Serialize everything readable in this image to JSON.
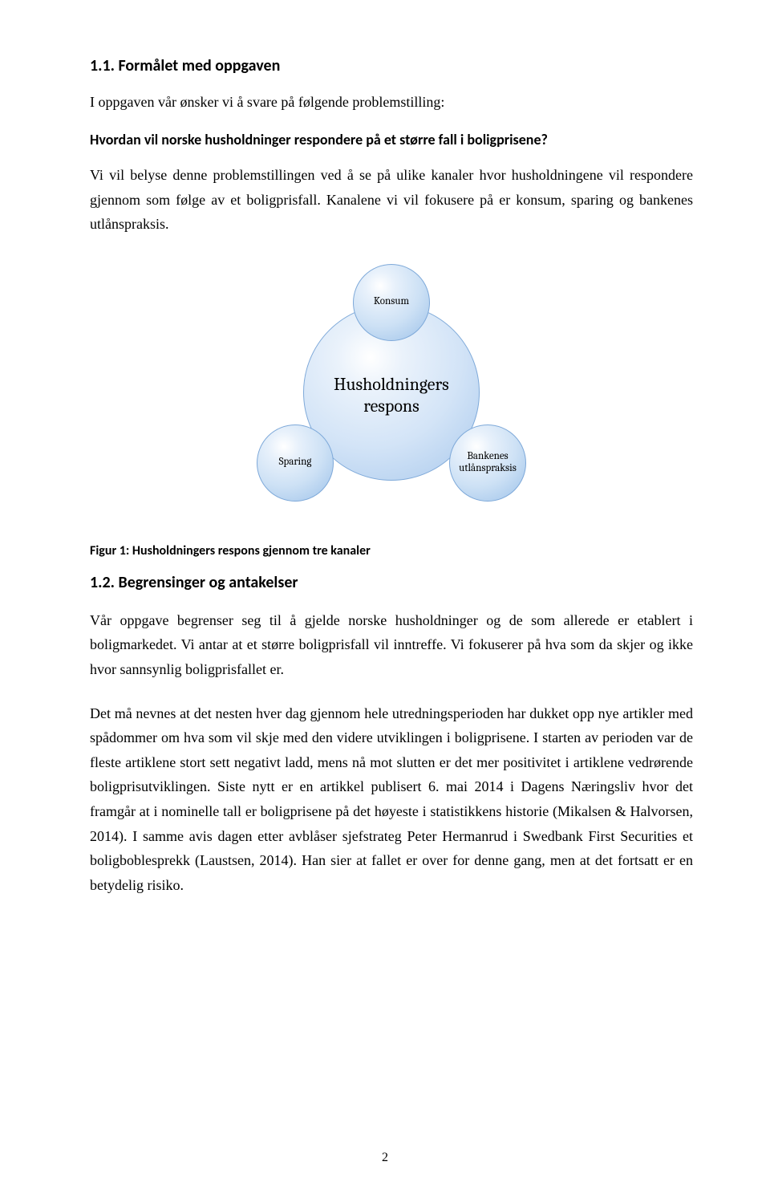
{
  "section1": {
    "heading": "1.1.  Formålet med oppgaven",
    "intro": "I oppgaven vår ønsker vi å svare på følgende problemstilling:",
    "question": "Hvordan vil norske husholdninger respondere på et større fall i boligprisene?",
    "para": "Vi vil belyse denne problemstillingen ved å se på ulike kanaler hvor husholdningene vil respondere gjennom som følge av et boligprisfall. Kanalene vi vil fokusere på er konsum, sparing og bankenes utlånspraksis."
  },
  "diagram": {
    "center": "Husholdningers respons",
    "top": "Konsum",
    "left": "Sparing",
    "right": "Bankenes utlånspraksis",
    "colors": {
      "circle_light": "#eaf2fb",
      "circle_mid": "#cde1f5",
      "circle_dark": "#9cc1e9",
      "border": "#7ea9d9"
    }
  },
  "caption": "Figur 1: Husholdningers respons gjennom tre kanaler",
  "section2": {
    "heading": "1.2.  Begrensinger og antakelser",
    "para1": "Vår oppgave begrenser seg til å gjelde norske husholdninger og de som allerede er etablert i boligmarkedet. Vi antar at et større boligprisfall vil inntreffe. Vi fokuserer på hva som da skjer og ikke hvor sannsynlig boligprisfallet er.",
    "para2": "Det må nevnes at det nesten hver dag gjennom hele utredningsperioden har dukket opp nye artikler med spådommer om hva som vil skje med den videre utviklingen i boligprisene. I starten av perioden var de fleste artiklene stort sett negativt ladd, mens nå mot slutten er det mer positivitet i artiklene vedrørende boligprisutviklingen. Siste nytt er en artikkel publisert 6. mai 2014 i Dagens Næringsliv hvor det framgår at i nominelle tall er boligprisene på det høyeste i statistikkens historie (Mikalsen & Halvorsen, 2014). I samme avis dagen etter avblåser sjefstrateg Peter Hermanrud i Swedbank First Securities et boligboblesprekk (Laustsen, 2014). Han sier at fallet er over for denne gang, men at det fortsatt er en betydelig risiko."
  },
  "pageNumber": "2"
}
